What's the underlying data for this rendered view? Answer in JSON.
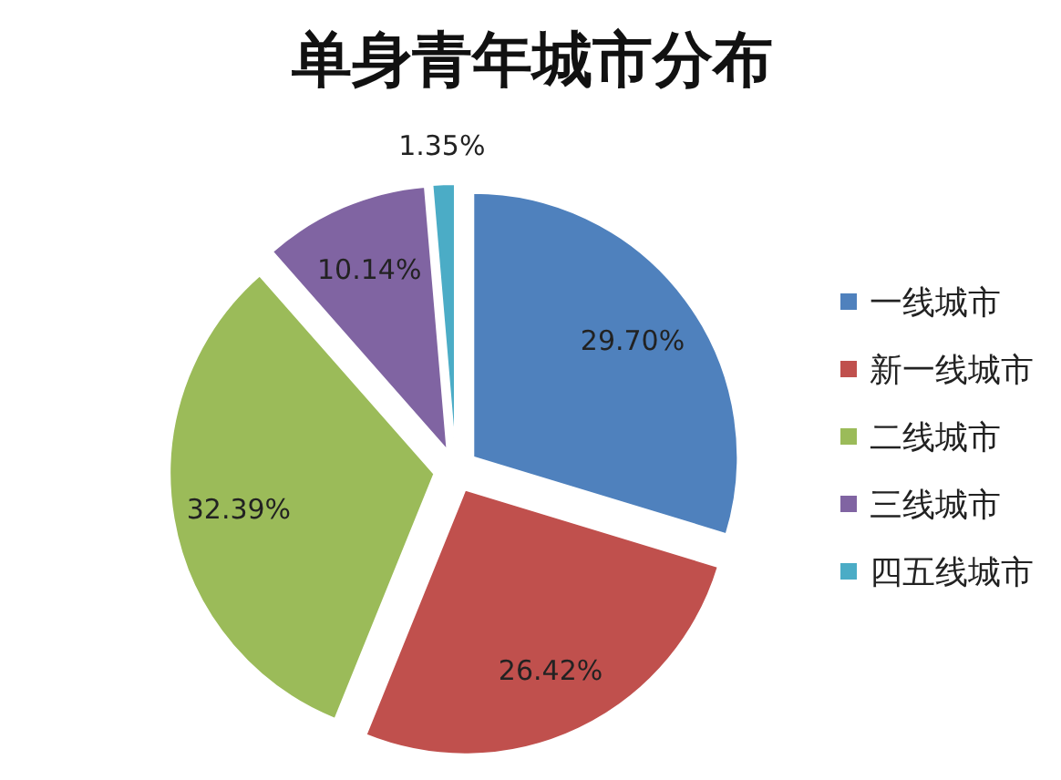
{
  "chart_data": {
    "type": "pie",
    "title": "单身青年城市分布",
    "categories": [
      "一线城市",
      "新一线城市",
      "二线城市",
      "三线城市",
      "四五线城市"
    ],
    "values": [
      29.7,
      26.42,
      32.39,
      10.14,
      1.35
    ],
    "value_labels": [
      "29.70%",
      "26.42%",
      "32.39%",
      "10.14%",
      "1.35%"
    ],
    "colors": [
      "#4f81bd",
      "#c0504d",
      "#9bbb59",
      "#8064a2",
      "#4bacc6"
    ],
    "legend": "right"
  }
}
